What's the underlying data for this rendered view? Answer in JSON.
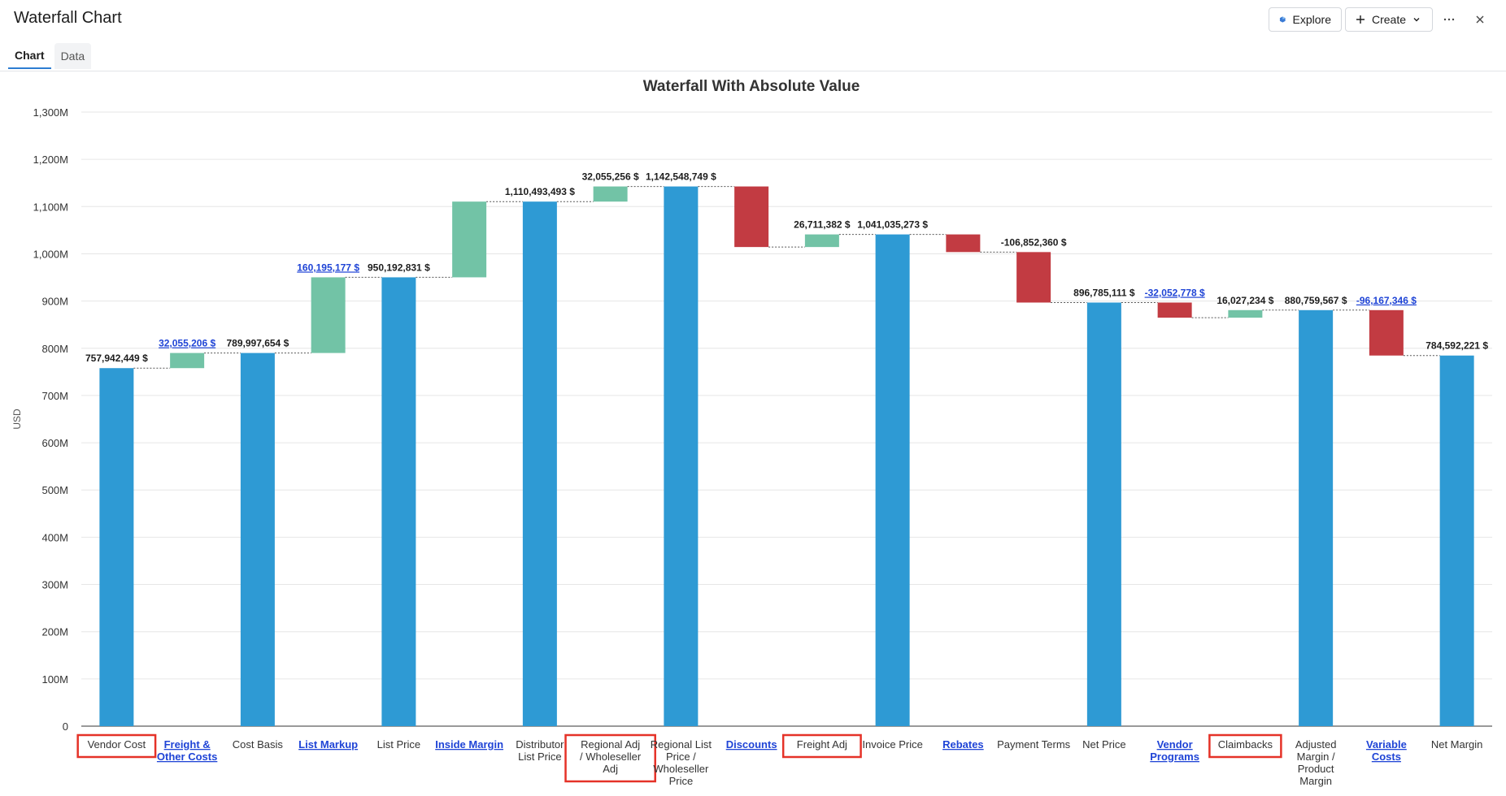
{
  "header": {
    "title": "Waterfall Chart",
    "explore_label": "Explore",
    "create_label": "Create",
    "icons": [
      "explore-icon",
      "plus-icon",
      "chevron-down-icon",
      "more-icon",
      "close-icon"
    ]
  },
  "tabs": [
    {
      "label": "Chart",
      "active": true
    },
    {
      "label": "Data",
      "active": false
    }
  ],
  "colors": {
    "total": "#2e9ad4",
    "increase": "#72c3a6",
    "decrease": "#c23b42",
    "link": "#1f44d6",
    "highlight_box": "#e53228"
  },
  "chart_data": {
    "type": "bar",
    "subtype": "waterfall",
    "title": "Waterfall With Absolute Value",
    "ylabel": "USD",
    "xlabel": "",
    "ylim": [
      0,
      1300000000
    ],
    "y_ticks": [
      "0",
      "100M",
      "200M",
      "300M",
      "400M",
      "500M",
      "600M",
      "700M",
      "800M",
      "900M",
      "1,000M",
      "1,100M",
      "1,200M",
      "1,300M"
    ],
    "grid": true,
    "legend": "none",
    "categories": [
      {
        "label": "Vendor Cost",
        "kind": "total",
        "value": 757942449,
        "value_label": "757,942,449 $",
        "link": false,
        "value_link": false,
        "highlighted": true
      },
      {
        "label": "Freight & Other Costs",
        "kind": "delta",
        "value": 32055206,
        "value_label": "32,055,206 $",
        "link": true,
        "value_link": true,
        "highlighted": false
      },
      {
        "label": "Cost Basis",
        "kind": "total",
        "value": 789997654,
        "value_label": "789,997,654 $",
        "link": false,
        "value_link": false,
        "highlighted": false
      },
      {
        "label": "List Markup",
        "kind": "delta",
        "value": 160195177,
        "value_label": "160,195,177 $",
        "link": true,
        "value_link": true,
        "highlighted": false
      },
      {
        "label": "List Price",
        "kind": "total",
        "value": 950192831,
        "value_label": "950,192,831 $",
        "link": false,
        "value_link": false,
        "highlighted": false
      },
      {
        "label": "Inside Margin",
        "kind": "delta",
        "value": 160300662,
        "value_label": "",
        "link": true,
        "value_link": false,
        "highlighted": false
      },
      {
        "label": "Distributor List Price",
        "kind": "total",
        "value": 1110493493,
        "value_label": "1,110,493,493 $",
        "link": false,
        "value_link": false,
        "highlighted": false
      },
      {
        "label": "Regional Adj / Wholeseller Adj",
        "kind": "delta",
        "value": 32055256,
        "value_label": "32,055,256 $",
        "link": false,
        "value_link": false,
        "highlighted": true
      },
      {
        "label": "Regional List Price / Wholeseller Price",
        "kind": "total",
        "value": 1142548749,
        "value_label": "1,142,548,749 $",
        "link": false,
        "value_link": false,
        "highlighted": false
      },
      {
        "label": "Discounts",
        "kind": "delta",
        "value": -128224858,
        "value_label": "",
        "link": true,
        "value_link": false,
        "highlighted": false
      },
      {
        "label": "Freight Adj",
        "kind": "delta",
        "value": 26711382,
        "value_label": "26,711,382 $",
        "link": false,
        "value_link": false,
        "highlighted": true
      },
      {
        "label": "Invoice Price",
        "kind": "total",
        "value": 1041035273,
        "value_label": "1,041,035,273 $",
        "link": false,
        "value_link": false,
        "highlighted": false
      },
      {
        "label": "Rebates",
        "kind": "delta",
        "value": -37397802,
        "value_label": "",
        "link": true,
        "value_link": false,
        "highlighted": false
      },
      {
        "label": "Payment Terms",
        "kind": "delta",
        "value": -106852360,
        "value_label": "-106,852,360 $",
        "link": false,
        "value_link": false,
        "highlighted": false
      },
      {
        "label": "Net Price",
        "kind": "total",
        "value": 896785111,
        "value_label": "896,785,111 $",
        "link": false,
        "value_link": false,
        "highlighted": false
      },
      {
        "label": "Vendor Programs",
        "kind": "delta",
        "value": -32052778,
        "value_label": "-32,052,778 $",
        "link": true,
        "value_link": true,
        "highlighted": false
      },
      {
        "label": "Claimbacks",
        "kind": "delta",
        "value": 16027234,
        "value_label": "16,027,234 $",
        "link": false,
        "value_link": false,
        "highlighted": true
      },
      {
        "label": "Adjusted Margin / Product Margin",
        "kind": "total",
        "value": 880759567,
        "value_label": "880,759,567 $",
        "link": false,
        "value_link": false,
        "highlighted": false
      },
      {
        "label": "Variable Costs",
        "kind": "delta",
        "value": -96167346,
        "value_label": "-96,167,346 $",
        "link": true,
        "value_link": true,
        "highlighted": false
      },
      {
        "label": "Net Margin",
        "kind": "total",
        "value": 784592221,
        "value_label": "784,592,221 $",
        "link": false,
        "value_link": false,
        "highlighted": false
      }
    ]
  }
}
